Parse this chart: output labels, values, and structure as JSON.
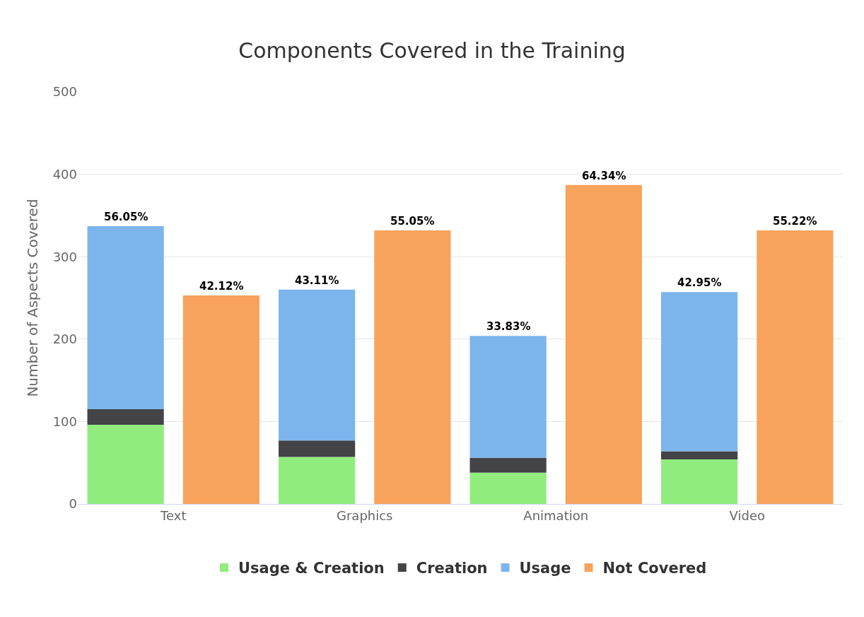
{
  "chart_data": {
    "type": "bar",
    "title": "Components Covered in the Training",
    "ylabel": "Number of Aspects Covered",
    "categories": [
      "Text",
      null,
      "Graphics",
      null,
      "Animation",
      null,
      "Video",
      null
    ],
    "stacked": true,
    "series": [
      {
        "name": "Usage & Creation",
        "color": "#90ed7d",
        "values": [
          96,
          null,
          57,
          null,
          38,
          null,
          54,
          null
        ]
      },
      {
        "name": "Creation",
        "color": "#434348",
        "values": [
          19,
          null,
          20,
          null,
          18,
          null,
          10,
          null
        ]
      },
      {
        "name": "Usage",
        "color": "#7cb5ec",
        "values": [
          222,
          null,
          183,
          null,
          148,
          null,
          193,
          null
        ]
      },
      {
        "name": "Not Covered",
        "color": "#f7a35c",
        "values": [
          null,
          253,
          null,
          332,
          null,
          387,
          null,
          332
        ]
      }
    ],
    "annotations": [
      "56.05%",
      "42.12%",
      "43.11%",
      "55.05%",
      "33.83%",
      "64.34%",
      "42.95%",
      "55.22%"
    ],
    "ylim": [
      0,
      500
    ],
    "yticks": [
      0,
      100,
      200,
      300,
      400,
      500
    ],
    "grid": "y",
    "legend": "bottom"
  }
}
